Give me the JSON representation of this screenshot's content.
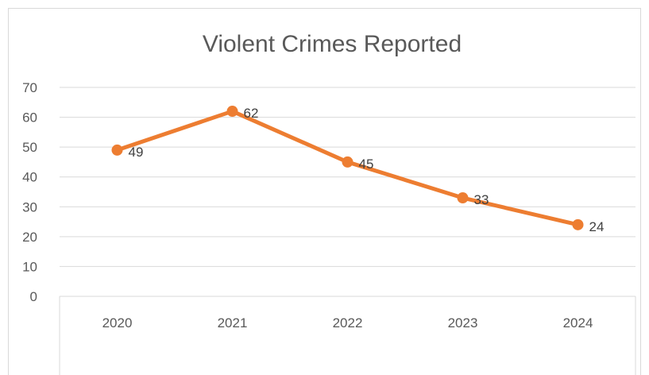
{
  "chart_data": {
    "type": "line",
    "title": "Violent Crimes Reported",
    "categories": [
      "2020",
      "2021",
      "2022",
      "2023",
      "2024"
    ],
    "series": [
      {
        "values": [
          49,
          62,
          45,
          33,
          24
        ]
      }
    ],
    "y_ticks": [
      "0",
      "10",
      "20",
      "30",
      "40",
      "50",
      "60",
      "70"
    ],
    "ylim": [
      0,
      70
    ],
    "grid": true,
    "legend": "none",
    "data_labels": true,
    "colors": {
      "line": "#ED7D31",
      "grid": "#d9d9d9",
      "text": "#595959"
    }
  }
}
